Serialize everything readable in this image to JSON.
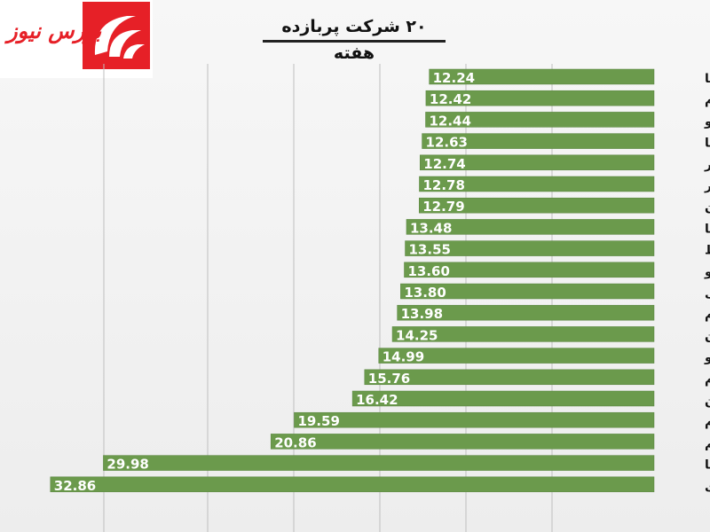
{
  "title": "۲۰ شرکت پربازده هفته",
  "logo": {
    "text": "بورس نیوز"
  },
  "colors": {
    "bar": "#6b9a4c",
    "bar_edge": "#5a8540",
    "grid": "#bfbfbf",
    "label_text": "#ffffff",
    "category_text": "#111111",
    "accent": "#e62027"
  },
  "chart_data": {
    "type": "bar",
    "orientation": "horizontal",
    "title": "۲۰ شرکت پربازده هفته",
    "xlabel": "",
    "ylabel": "",
    "grid": true,
    "categories": [
      "سکرما",
      "ساروم",
      "دسانکو",
      "حرهشا",
      "خمحور",
      "فسلیر",
      "سمازن",
      "فاما",
      "کحافظ",
      "وپترو",
      "فلامی",
      "کترام",
      "چکارن",
      "سبجنو",
      "کسرام",
      "آبین",
      "لپیام",
      "شسم",
      "ثغتما",
      "سادزی"
    ],
    "values": [
      12.24,
      12.42,
      12.44,
      12.63,
      12.74,
      12.78,
      12.79,
      13.48,
      13.55,
      13.6,
      13.8,
      13.98,
      14.25,
      14.99,
      15.76,
      16.42,
      19.59,
      20.86,
      29.98,
      32.86
    ],
    "value_labels": [
      "12.24",
      "12.42",
      "12.44",
      "12.63",
      "12.74",
      "12.78",
      "12.79",
      "13.48",
      "13.55",
      "13.60",
      "13.80",
      "13.98",
      "14.25",
      "14.99",
      "15.76",
      "16.42",
      "19.59",
      "20.86",
      "29.98",
      "32.86"
    ]
  }
}
